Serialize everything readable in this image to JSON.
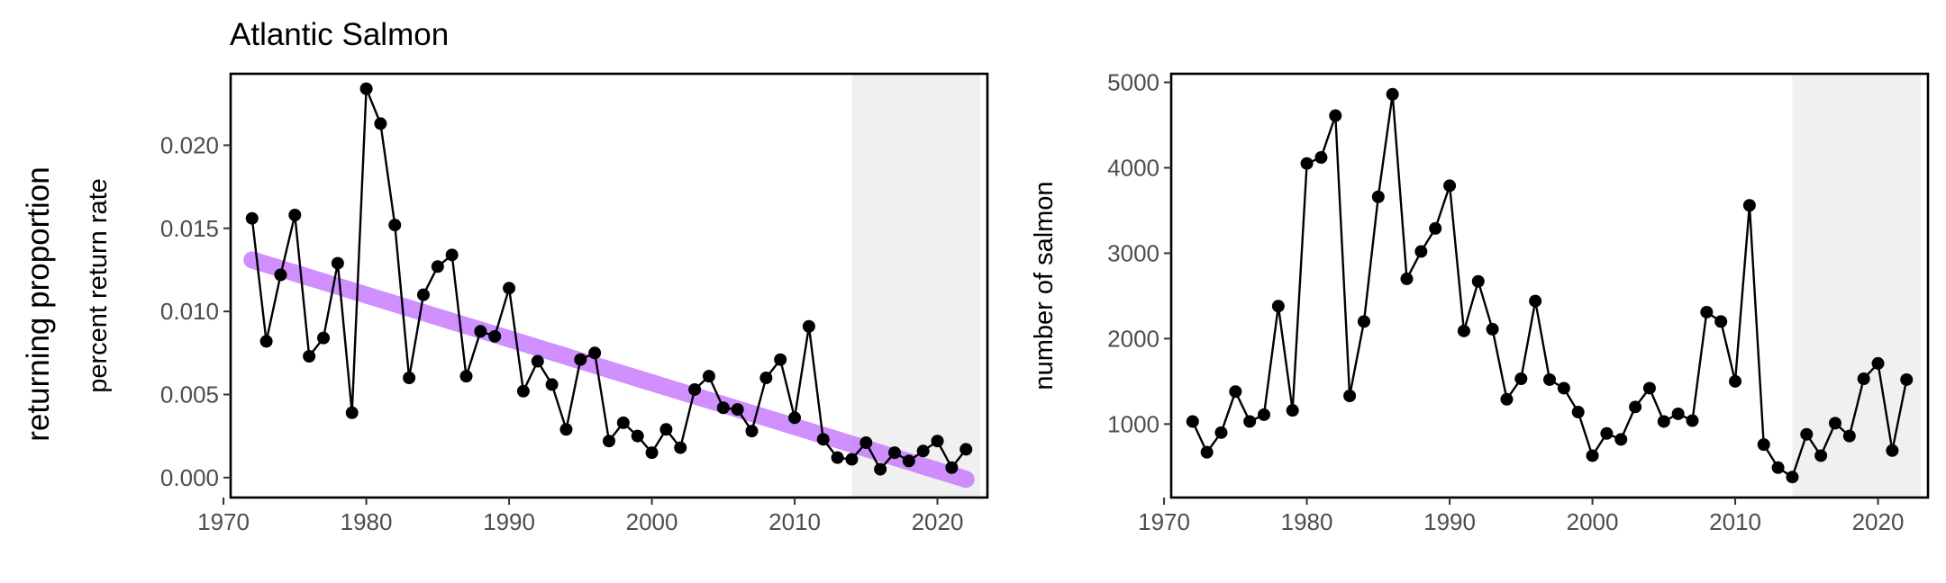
{
  "figure": {
    "title": "Atlantic Salmon",
    "outer_ylabel": "returning proportion"
  },
  "chart_data": [
    {
      "type": "line",
      "title": "Atlantic Salmon",
      "xlabel": "",
      "ylabel": "percent return rate",
      "xlim": [
        1970.5,
        2023.5
      ],
      "ylim": [
        -0.0012,
        0.0243
      ],
      "xticks": [
        1970,
        1980,
        1990,
        2000,
        2010,
        2020
      ],
      "xtick_labels": [
        "1970",
        "1980",
        "1990",
        "2000",
        "2010",
        "2020"
      ],
      "yticks": [
        0.0,
        0.005,
        0.01,
        0.015,
        0.02
      ],
      "ytick_labels": [
        "0.000",
        "0.005",
        "0.010",
        "0.015",
        "0.020"
      ],
      "shaded_region": [
        2014,
        2023
      ],
      "grid": false,
      "colors": {
        "series": "#000000",
        "trend": "#c77cff",
        "shade": "#f0f0f0"
      },
      "series": [
        {
          "x": [
            1972,
            1973,
            1974,
            1975,
            1976,
            1977,
            1978,
            1979,
            1980,
            1981,
            1982,
            1983,
            1984,
            1985,
            1986,
            1987,
            1988,
            1989,
            1990,
            1991,
            1992,
            1993,
            1994,
            1995,
            1996,
            1997,
            1998,
            1999,
            2000,
            2001,
            2002,
            2003,
            2004,
            2005,
            2006,
            2007,
            2008,
            2009,
            2010,
            2011,
            2012,
            2013,
            2014,
            2015,
            2016,
            2017,
            2018,
            2019,
            2020,
            2021,
            2022
          ],
          "values": [
            0.0156,
            0.0082,
            0.0122,
            0.0158,
            0.0073,
            0.0084,
            0.0129,
            0.0039,
            0.0234,
            0.0213,
            0.0152,
            0.006,
            0.011,
            0.0127,
            0.0134,
            0.0061,
            0.0088,
            0.0085,
            0.0114,
            0.0052,
            0.007,
            0.0056,
            0.0029,
            0.0071,
            0.0075,
            0.0022,
            0.0033,
            0.0025,
            0.0015,
            0.0029,
            0.0018,
            0.0053,
            0.0061,
            0.0042,
            0.0041,
            0.0028,
            0.006,
            0.0071,
            0.0036,
            0.0091,
            0.0023,
            0.0012,
            0.0011,
            0.0021,
            0.0005,
            0.0015,
            0.001,
            0.0016,
            0.0022,
            0.0006,
            0.0017
          ]
        }
      ],
      "trend": {
        "x": [
          1972,
          2022
        ],
        "values": [
          0.0131,
          -0.0001
        ]
      }
    },
    {
      "type": "line",
      "title": "",
      "xlabel": "",
      "ylabel": "number of salmon",
      "xlim": [
        1970.5,
        2023.5
      ],
      "ylim": [
        140,
        5100
      ],
      "xticks": [
        1970,
        1980,
        1990,
        2000,
        2010,
        2020
      ],
      "xtick_labels": [
        "1970",
        "1980",
        "1990",
        "2000",
        "2010",
        "2020"
      ],
      "yticks": [
        1000,
        2000,
        3000,
        4000,
        5000
      ],
      "ytick_labels": [
        "1000",
        "2000",
        "3000",
        "4000",
        "5000"
      ],
      "shaded_region": [
        2014,
        2023
      ],
      "grid": false,
      "colors": {
        "series": "#000000",
        "shade": "#f0f0f0"
      },
      "series": [
        {
          "x": [
            1972,
            1973,
            1974,
            1975,
            1976,
            1977,
            1978,
            1979,
            1980,
            1981,
            1982,
            1983,
            1984,
            1985,
            1986,
            1987,
            1988,
            1989,
            1990,
            1991,
            1992,
            1993,
            1994,
            1995,
            1996,
            1997,
            1998,
            1999,
            2000,
            2001,
            2002,
            2003,
            2004,
            2005,
            2006,
            2007,
            2008,
            2009,
            2010,
            2011,
            2012,
            2013,
            2014,
            2015,
            2016,
            2017,
            2018,
            2019,
            2020,
            2021,
            2022
          ],
          "values": [
            1030,
            670,
            900,
            1380,
            1030,
            1110,
            2380,
            1160,
            4050,
            4120,
            4610,
            1330,
            2200,
            3660,
            4860,
            2700,
            3020,
            3290,
            3790,
            2090,
            2670,
            2110,
            1290,
            1530,
            2440,
            1520,
            1420,
            1140,
            630,
            890,
            820,
            1200,
            1420,
            1030,
            1120,
            1040,
            2310,
            2200,
            1500,
            3560,
            760,
            490,
            380,
            880,
            630,
            1010,
            860,
            1530,
            1710,
            690,
            1520
          ]
        }
      ]
    }
  ]
}
